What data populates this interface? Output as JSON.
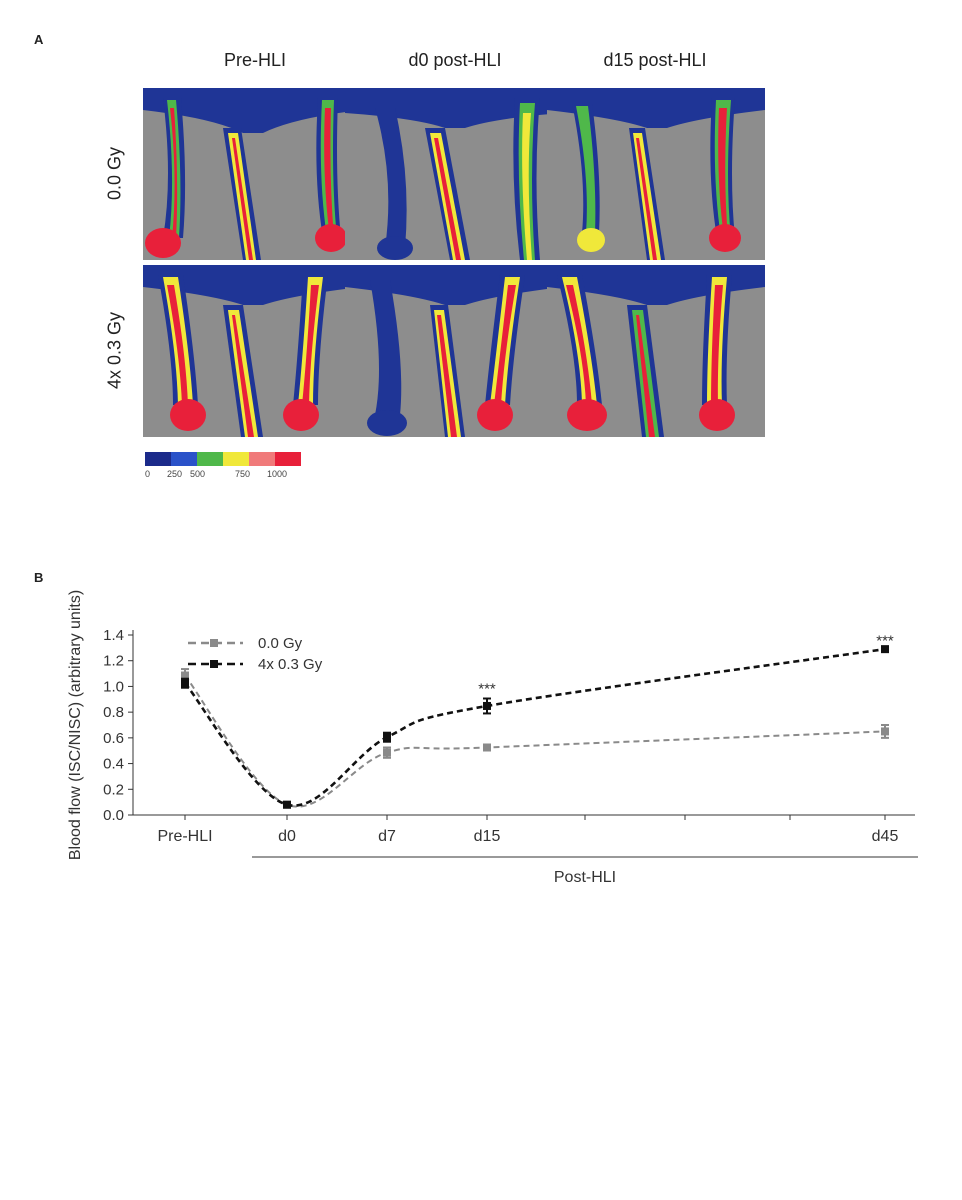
{
  "panels": {
    "a": "A",
    "b": "B"
  },
  "imaging": {
    "columns": [
      "Pre-HLI",
      "d0 post-HLI",
      "d15 post-HLI"
    ],
    "rows": [
      "0.0 Gy",
      "4x 0.3 Gy"
    ],
    "colorbar_colors": [
      "#1b2a8a",
      "#2a52c9",
      "#4fb84a",
      "#f0e83a",
      "#f07a7a",
      "#e8203a"
    ],
    "colorbar_ticks": [
      "0",
      "250",
      "500",
      "750",
      "1000"
    ]
  },
  "chart_data": {
    "type": "line",
    "ylabel": "Blood flow (ISC/NISC) (arbitrary units)",
    "xlabel": "Post-HLI",
    "x_tick_labels": [
      "Pre-HLI",
      "d0",
      "d7",
      "d15",
      "d45"
    ],
    "ylim": [
      0,
      1.4
    ],
    "yticks": [
      "0.0",
      "0.2",
      "0.4",
      "0.6",
      "0.8",
      "1.0",
      "1.2",
      "1.4"
    ],
    "series": [
      {
        "name": "0.0 Gy",
        "color": "#8a8a8a",
        "line": "dashed",
        "values": [
          1.085,
          0.08,
          0.485,
          0.525,
          0.65
        ],
        "errors": [
          0.05,
          0.01,
          0.04,
          0.015,
          0.05
        ]
      },
      {
        "name": "4x 0.3 Gy",
        "color": "#111111",
        "line": "dashed",
        "values": [
          1.025,
          0.08,
          0.605,
          0.848,
          1.29
        ],
        "errors": [
          0.035,
          0.01,
          0.035,
          0.058,
          0.01
        ]
      }
    ],
    "annotations": [
      {
        "x": "d15",
        "y": 0.99,
        "text": "***"
      },
      {
        "x": "d45",
        "y": 1.365,
        "text": "***"
      }
    ],
    "legend_position": "top-left",
    "grid": false
  }
}
